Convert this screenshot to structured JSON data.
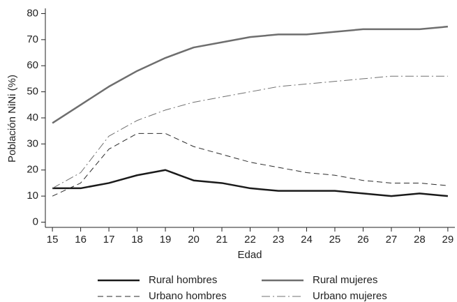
{
  "chart_data": {
    "type": "line",
    "x_label": "Edad",
    "y_label": "Población NiNi (%)",
    "x": [
      15,
      16,
      17,
      18,
      19,
      20,
      21,
      22,
      23,
      24,
      25,
      26,
      27,
      28,
      29
    ],
    "series": [
      {
        "name": "Rural hombres",
        "color": "#1a1a1a",
        "dash": "solid",
        "width": 2.5,
        "values": [
          13,
          13,
          15,
          18,
          20,
          16,
          15,
          13,
          12,
          12,
          12,
          11,
          10,
          11,
          10
        ]
      },
      {
        "name": "Rural mujeres",
        "color": "#6e6e6e",
        "dash": "solid",
        "width": 2.5,
        "values": [
          38,
          45,
          52,
          58,
          63,
          67,
          69,
          71,
          72,
          72,
          73,
          74,
          74,
          74,
          75
        ]
      },
      {
        "name": "Urbano hombres",
        "color": "#2a2a2a",
        "dash": "dashed",
        "width": 1,
        "values": [
          10,
          15,
          28,
          34,
          34,
          29,
          26,
          23,
          21,
          19,
          18,
          16,
          15,
          15,
          14
        ]
      },
      {
        "name": "Urbano mujeres",
        "color": "#707070",
        "dash": "dashdot",
        "width": 1,
        "values": [
          13,
          19,
          33,
          39,
          43,
          46,
          48,
          50,
          52,
          53,
          54,
          55,
          56,
          56,
          56
        ]
      }
    ],
    "xlim": [
      14.75,
      29.25
    ],
    "ylim": [
      -2,
      82
    ],
    "xticks": [
      15,
      16,
      17,
      18,
      19,
      20,
      21,
      22,
      23,
      24,
      25,
      26,
      27,
      28,
      29
    ],
    "yticks": [
      0,
      10,
      20,
      30,
      40,
      50,
      60,
      70,
      80
    ],
    "grid": false,
    "legend": "bottom"
  }
}
